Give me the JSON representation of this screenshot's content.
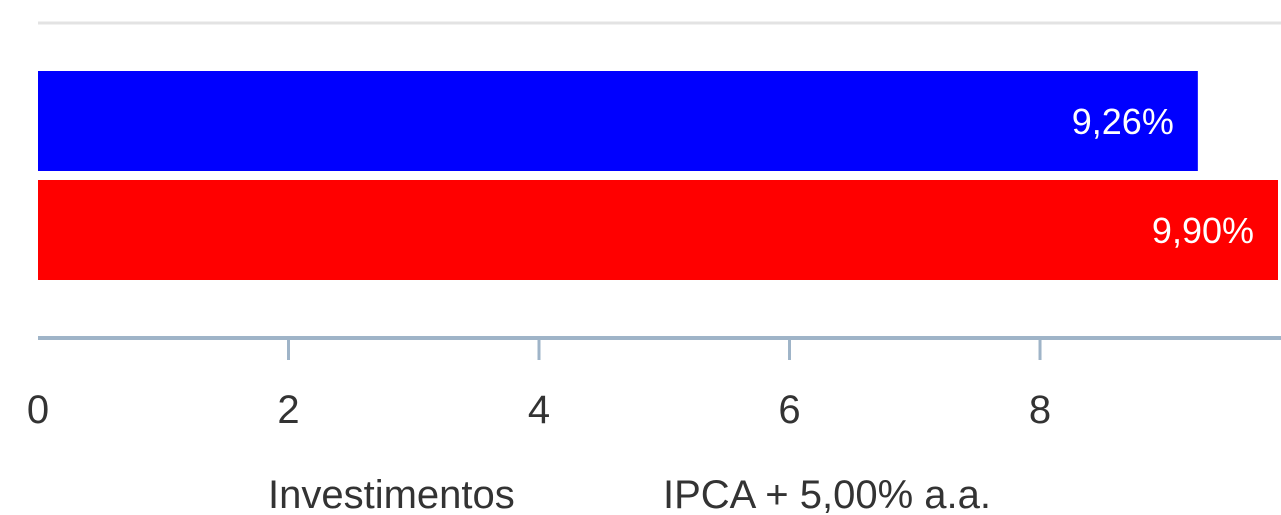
{
  "chart_data": {
    "type": "bar",
    "orientation": "horizontal",
    "categories": [
      ""
    ],
    "series": [
      {
        "name": "Investimentos",
        "values": [
          9.26
        ],
        "label": "9,26%",
        "color": "#0000ff"
      },
      {
        "name": "IPCA + 5,00% a.a.",
        "values": [
          9.9
        ],
        "label": "9,90%",
        "color": "#ff0000"
      }
    ],
    "xlim": [
      0,
      9.9
    ],
    "xticks": [
      0,
      2,
      4,
      6,
      8
    ],
    "xtick_labels": [
      "0",
      "2",
      "4",
      "6",
      "8"
    ],
    "title": "",
    "xlabel": "",
    "ylabel": "",
    "grid": false,
    "legend_position": "bottom",
    "axis_color": "#9fb4c8"
  }
}
